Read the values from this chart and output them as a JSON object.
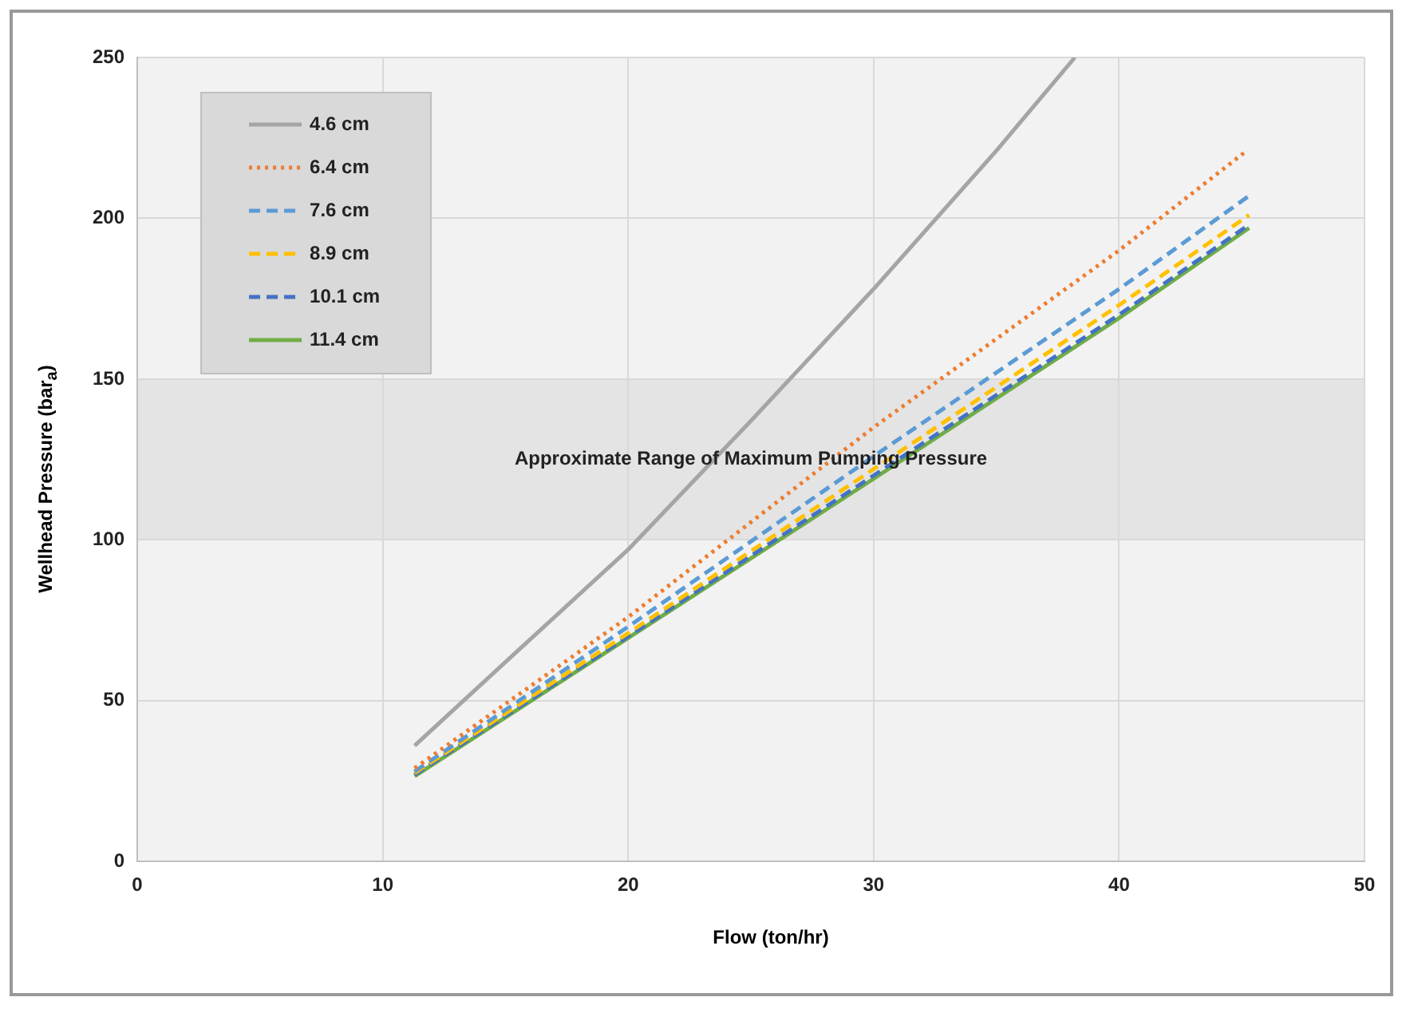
{
  "chart_data": {
    "type": "line",
    "xlabel": "Flow (ton/hr)",
    "ylabel": "Wellhead Pressure (bar$_{a}$)",
    "xlim": [
      0,
      50
    ],
    "xticks": [
      0,
      10,
      20,
      30,
      40,
      50
    ],
    "ylim": [
      0,
      250
    ],
    "yticks": [
      0,
      50,
      100,
      150,
      200,
      250
    ],
    "grid": true,
    "legend": "top left",
    "marker": "none",
    "bands": [
      {
        "axis": "y",
        "from": 100,
        "to": 150,
        "label": "Approximate Range of Maximum Pumping Pressure",
        "color": "#e4e4e4"
      }
    ],
    "series": [
      {
        "name": "4.6 cm",
        "color": "#a5a5a5",
        "line_style": "solid",
        "x": [
          11.3,
          15,
          20,
          25,
          30,
          35,
          38.2
        ],
        "values": [
          36,
          62,
          97,
          137,
          178,
          221,
          250
        ]
      },
      {
        "name": "6.4 cm",
        "color": "#ed7d31",
        "line_style": "dotted",
        "x": [
          11.3,
          20,
          30,
          40,
          45.2
        ],
        "values": [
          29,
          76,
          135,
          190,
          221
        ]
      },
      {
        "name": "7.6 cm",
        "color": "#5b9bd5",
        "line_style": "dashed",
        "x": [
          11.3,
          20,
          30,
          40,
          45.3
        ],
        "values": [
          28,
          73,
          126,
          178,
          207
        ]
      },
      {
        "name": "8.9 cm",
        "color": "#ffc000",
        "line_style": "dashed",
        "x": [
          11.3,
          20,
          30,
          40,
          45.3
        ],
        "values": [
          27.5,
          71,
          122,
          173,
          201
        ]
      },
      {
        "name": "10.1 cm",
        "color": "#4472c4",
        "line_style": "dashed",
        "x": [
          11.3,
          20,
          30,
          40,
          45.3
        ],
        "values": [
          27,
          70,
          120,
          170,
          198
        ]
      },
      {
        "name": "11.4 cm",
        "color": "#70ad47",
        "line_style": "solid",
        "x": [
          11.3,
          20,
          30,
          40,
          45.3
        ],
        "values": [
          26.5,
          69.5,
          119,
          169,
          197
        ]
      }
    ]
  }
}
